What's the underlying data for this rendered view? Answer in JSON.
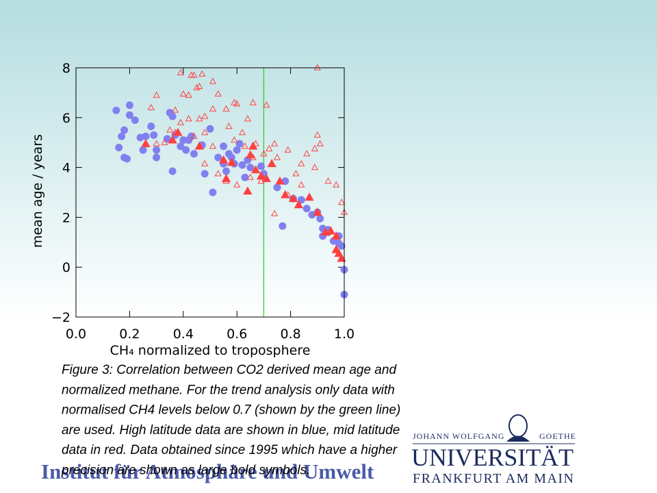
{
  "chart_data": {
    "type": "scatter",
    "xlabel": "CH₄ normalized to troposphere",
    "ylabel": "mean age / years",
    "xlim": [
      0.0,
      1.0
    ],
    "ylim": [
      -2.0,
      8.0
    ],
    "xticks": [
      {
        "value": 0,
        "label": "0.0"
      },
      {
        "value": 0.2,
        "label": "0.2"
      },
      {
        "value": 0.4,
        "label": "0.4"
      },
      {
        "value": 0.6,
        "label": "0.6"
      },
      {
        "value": 0.8,
        "label": "0.8"
      },
      {
        "value": 1,
        "label": "1.0"
      }
    ],
    "yticks": [
      {
        "value": -2,
        "label": "−2"
      },
      0,
      2,
      4,
      6,
      8
    ],
    "vline": {
      "x": 0.7,
      "color": "#33cc33"
    },
    "series": [
      {
        "color": "#8080f0",
        "marker": "circle",
        "x": [
          0.15,
          0.16,
          0.17,
          0.18,
          0.18,
          0.19,
          0.2,
          0.2,
          0.22,
          0.24,
          0.25,
          0.26,
          0.28,
          0.29,
          0.3,
          0.3,
          0.34,
          0.35,
          0.36,
          0.36,
          0.37,
          0.39,
          0.4,
          0.41,
          0.42,
          0.43,
          0.44,
          0.47,
          0.48,
          0.5,
          0.51,
          0.53,
          0.55,
          0.55,
          0.56,
          0.57,
          0.58,
          0.59,
          0.6,
          0.61,
          0.62,
          0.63,
          0.64,
          0.65,
          0.69,
          0.7,
          0.75,
          0.77,
          0.78,
          0.81,
          0.84,
          0.86,
          0.88,
          0.9,
          0.91,
          0.92,
          0.92,
          0.94,
          0.94,
          0.96,
          0.97,
          0.98,
          0.98,
          0.99,
          1.0,
          1.0
        ],
        "y": [
          6.29,
          4.8,
          5.25,
          5.5,
          4.4,
          4.35,
          6.5,
          6.1,
          5.9,
          5.2,
          4.7,
          5.25,
          5.65,
          5.3,
          4.4,
          4.7,
          5.15,
          6.2,
          3.85,
          6.05,
          5.3,
          4.85,
          5.1,
          4.7,
          5.1,
          5.25,
          4.55,
          4.9,
          3.75,
          5.55,
          3.0,
          4.4,
          4.85,
          4.15,
          3.85,
          4.55,
          4.4,
          4.15,
          4.7,
          4.95,
          4.1,
          3.6,
          4.3,
          4.0,
          4.05,
          3.75,
          3.2,
          1.65,
          3.45,
          2.75,
          2.7,
          2.35,
          2.1,
          2.2,
          1.95,
          1.55,
          1.25,
          1.4,
          1.5,
          1.05,
          1.1,
          1.25,
          0.95,
          0.85,
          -0.1,
          -1.1
        ]
      },
      {
        "color": "#ff4040",
        "marker": "triangle-open",
        "x": [
          0.39,
          0.43,
          0.44,
          0.47,
          0.4,
          0.42,
          0.45,
          0.46,
          0.51,
          0.53,
          0.28,
          0.3,
          0.37,
          0.39,
          0.42,
          0.46,
          0.48,
          0.51,
          0.56,
          0.59,
          0.6,
          0.66,
          0.64,
          0.71,
          0.35,
          0.37,
          0.3,
          0.33,
          0.44,
          0.48,
          0.51,
          0.57,
          0.59,
          0.62,
          0.63,
          0.66,
          0.67,
          0.7,
          0.72,
          0.75,
          0.74,
          0.79,
          0.82,
          0.84,
          0.86,
          0.89,
          0.91,
          0.9,
          0.89,
          0.94,
          0.97,
          0.99,
          1.0,
          0.74,
          0.79,
          0.84,
          0.56,
          0.6,
          0.65,
          0.69,
          0.48,
          0.53,
          0.9
        ],
        "y": [
          7.8,
          7.7,
          7.7,
          7.75,
          6.95,
          6.9,
          7.2,
          7.25,
          7.45,
          6.95,
          6.4,
          6.9,
          6.3,
          5.8,
          5.95,
          5.95,
          6.05,
          6.35,
          6.35,
          6.6,
          6.55,
          6.6,
          5.95,
          6.5,
          5.5,
          5.4,
          4.95,
          5.0,
          5.25,
          5.4,
          4.85,
          5.65,
          5.1,
          5.4,
          4.85,
          4.4,
          4.95,
          4.55,
          4.75,
          4.4,
          4.95,
          4.7,
          3.75,
          4.15,
          4.55,
          4.75,
          4.95,
          5.3,
          4.0,
          3.45,
          3.3,
          2.6,
          2.2,
          2.15,
          2.9,
          3.3,
          3.45,
          3.3,
          3.6,
          3.45,
          4.15,
          3.75,
          8.0
        ]
      },
      {
        "color": "#ff4040",
        "marker": "triangle",
        "x": [
          0.26,
          0.36,
          0.38,
          0.46,
          0.55,
          0.56,
          0.58,
          0.64,
          0.65,
          0.66,
          0.67,
          0.69,
          0.71,
          0.73,
          0.76,
          0.78,
          0.81,
          0.83,
          0.87,
          0.9,
          0.93,
          0.95,
          0.97,
          0.97,
          0.98,
          0.99
        ],
        "y": [
          4.95,
          5.1,
          5.4,
          4.85,
          4.3,
          3.55,
          4.2,
          3.05,
          4.5,
          4.85,
          3.9,
          3.65,
          3.55,
          4.15,
          3.45,
          2.9,
          2.75,
          2.5,
          2.8,
          2.2,
          1.4,
          1.45,
          1.25,
          0.7,
          0.55,
          0.35
        ]
      }
    ]
  },
  "caption": [
    "Figure 3: Correlation between CO2 derived mean age and",
    "normalized methane. For the trend analysis only data with",
    "normalised CH4 levels below 0.7 (shown by the green line)",
    "are used. High latitude data are shown in blue, mid latitude",
    "data in red. Data obtained since 1995 which have a higher",
    "precision are shown as large bold symbols."
  ],
  "footer": {
    "institute": "Institut für Atmosphäre und Umwelt",
    "logo": {
      "line1a": "JOHANN WOLFGANG",
      "line1b": "GOETHE",
      "name": "UNIVERSITÄT",
      "city": "FRANKFURT AM MAIN"
    }
  }
}
